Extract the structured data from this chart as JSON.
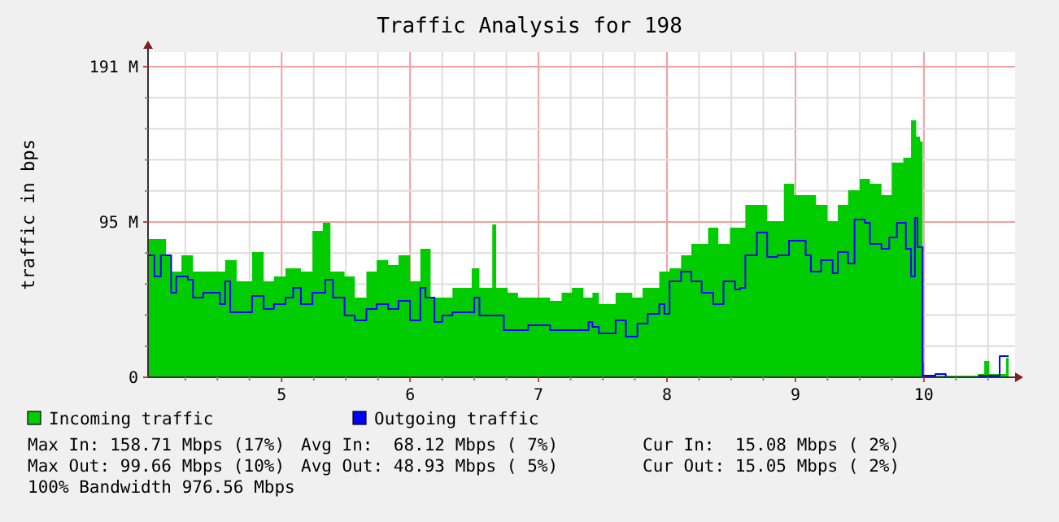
{
  "chart_data": {
    "type": "area",
    "title": "Traffic Analysis for 198",
    "ylabel": "traffic in bps",
    "xlim": [
      3.96,
      10.71
    ],
    "ylim": [
      0,
      200
    ],
    "xticks": [
      {
        "value": 4.25,
        "label": null
      },
      {
        "value": 4.5,
        "label": null
      },
      {
        "value": 4.75,
        "label": null
      },
      5,
      {
        "value": 5.25,
        "label": null
      },
      {
        "value": 5.5,
        "label": null
      },
      {
        "value": 5.75,
        "label": null
      },
      6,
      {
        "value": 6.25,
        "label": null
      },
      {
        "value": 6.5,
        "label": null
      },
      {
        "value": 6.75,
        "label": null
      },
      7,
      {
        "value": 7.25,
        "label": null
      },
      {
        "value": 7.5,
        "label": null
      },
      {
        "value": 7.75,
        "label": null
      },
      8,
      {
        "value": 8.25,
        "label": null
      },
      {
        "value": 8.5,
        "label": null
      },
      {
        "value": 8.75,
        "label": null
      },
      9,
      {
        "value": 9.25,
        "label": null
      },
      {
        "value": 9.5,
        "label": null
      },
      {
        "value": 9.75,
        "label": null
      },
      10,
      {
        "value": 10.25,
        "label": null
      },
      {
        "value": 10.5,
        "label": null
      }
    ],
    "yticks": [
      0,
      {
        "value": 19.1,
        "label": null
      },
      {
        "value": 38.2,
        "label": null
      },
      {
        "value": 57.3,
        "label": null
      },
      {
        "value": 76.4,
        "label": null
      },
      {
        "value": 95.5,
        "label": "95 M"
      },
      {
        "value": 114.6,
        "label": null
      },
      {
        "value": 133.7,
        "label": null
      },
      {
        "value": 152.8,
        "label": null
      },
      {
        "value": 171.9,
        "label": null
      },
      {
        "value": 191,
        "label": "191 M"
      }
    ],
    "grid": true,
    "legend": "bottom",
    "series": [
      {
        "name": "Incoming traffic",
        "color": "#00cc00",
        "x": [
          3.96,
          4.06,
          4.1,
          4.14,
          4.22,
          4.31,
          4.39,
          4.48,
          4.56,
          4.65,
          4.77,
          4.86,
          4.94,
          5.03,
          5.15,
          5.24,
          5.32,
          5.38,
          5.49,
          5.57,
          5.66,
          5.74,
          5.83,
          5.91,
          6.0,
          6.08,
          6.16,
          6.25,
          6.33,
          6.42,
          6.48,
          6.54,
          6.64,
          6.67,
          6.76,
          6.84,
          6.92,
          7.01,
          7.09,
          7.18,
          7.26,
          7.35,
          7.42,
          7.47,
          7.6,
          7.73,
          7.81,
          7.94,
          8.02,
          8.11,
          8.19,
          8.32,
          8.4,
          8.49,
          8.57,
          8.61,
          8.7,
          8.78,
          8.91,
          8.99,
          9.08,
          9.16,
          9.25,
          9.33,
          9.41,
          9.5,
          9.58,
          9.67,
          9.75,
          9.84,
          9.9,
          9.94,
          9.97,
          9.99,
          10.0,
          10.09,
          10.26,
          10.34,
          10.42,
          10.47,
          10.51,
          10.6,
          10.64,
          10.66
        ],
        "values": [
          85,
          85,
          75,
          65,
          75,
          65,
          65,
          65,
          72,
          59,
          77,
          59,
          62,
          67,
          65,
          90,
          95,
          65,
          62,
          49,
          65,
          72,
          69,
          75,
          59,
          79,
          49,
          49,
          55,
          55,
          67,
          55,
          94,
          55,
          52,
          49,
          49,
          49,
          47,
          52,
          55,
          49,
          52,
          45,
          52,
          49,
          55,
          65,
          67,
          75,
          82,
          92,
          82,
          92,
          92,
          106,
          106,
          96,
          119,
          112,
          112,
          106,
          96,
          106,
          115,
          122,
          119,
          112,
          132,
          135,
          158,
          148,
          145,
          9,
          0,
          1,
          1,
          1,
          2,
          10,
          2,
          2,
          12,
          12
        ]
      },
      {
        "name": "Outgoing traffic",
        "type": "step",
        "color": "#0000ff",
        "x": [
          3.96,
          4.01,
          4.06,
          4.14,
          4.18,
          4.27,
          4.31,
          4.39,
          4.52,
          4.56,
          4.6,
          4.73,
          4.77,
          4.86,
          4.94,
          5.03,
          5.09,
          5.15,
          5.24,
          5.34,
          5.4,
          5.49,
          5.57,
          5.66,
          5.74,
          5.83,
          5.91,
          6.0,
          6.08,
          6.12,
          6.19,
          6.25,
          6.33,
          6.42,
          6.5,
          6.54,
          6.67,
          6.73,
          6.84,
          6.92,
          7.09,
          7.26,
          7.39,
          7.42,
          7.47,
          7.6,
          7.68,
          7.77,
          7.85,
          7.94,
          7.98,
          8.02,
          8.11,
          8.19,
          8.27,
          8.36,
          8.44,
          8.53,
          8.57,
          8.61,
          8.7,
          8.74,
          8.78,
          8.86,
          8.95,
          9.08,
          9.12,
          9.2,
          9.29,
          9.33,
          9.41,
          9.46,
          9.54,
          9.58,
          9.67,
          9.73,
          9.79,
          9.86,
          9.9,
          9.93,
          9.95,
          9.98,
          9.99,
          10.09,
          10.17,
          10.26,
          10.43,
          10.55,
          10.59,
          10.66
        ],
        "values": [
          75,
          62,
          75,
          52,
          62,
          60,
          49,
          52,
          45,
          59,
          40,
          40,
          50,
          42,
          45,
          49,
          55,
          45,
          52,
          60,
          49,
          38,
          35,
          42,
          45,
          42,
          47,
          35,
          55,
          49,
          34,
          38,
          40,
          40,
          49,
          38,
          38,
          29,
          29,
          32,
          29,
          29,
          34,
          31,
          27,
          35,
          25,
          33,
          39,
          45,
          39,
          59,
          65,
          59,
          52,
          45,
          59,
          54,
          55,
          75,
          89,
          89,
          74,
          75,
          84,
          75,
          65,
          72,
          64,
          77,
          70,
          97,
          95,
          82,
          79,
          86,
          95,
          79,
          62,
          98,
          80,
          80,
          1,
          2,
          0,
          0,
          1,
          1,
          13,
          13
        ]
      }
    ],
    "annotations": [
      "Max In: 158.71 Mbps (17%)",
      "Avg In:  68.12 Mbps ( 7%)",
      "Cur In:  15.08 Mbps ( 2%)",
      "Max Out: 99.66 Mbps (10%)",
      "Avg Out: 48.93 Mbps ( 5%)",
      "Cur Out: 15.05 Mbps ( 2%)",
      "100% Bandwidth 976.56 Mbps"
    ]
  }
}
